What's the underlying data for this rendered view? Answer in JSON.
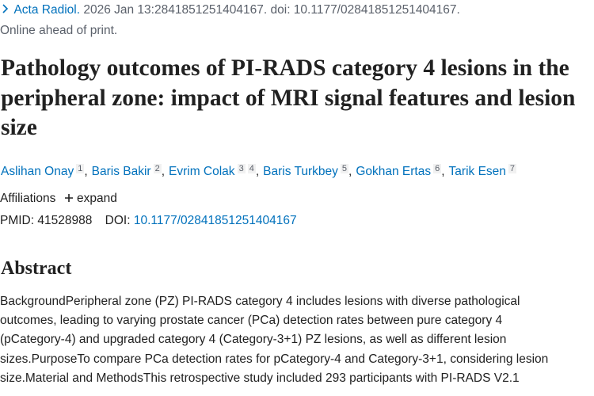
{
  "citation": {
    "journal": "Acta Radiol.",
    "details": " 2026 Jan 13:2841851251404167. doi: 10.1177/02841851251404167."
  },
  "status": "Online ahead of print.",
  "title": "Pathology outcomes of PI-RADS category 4 lesions in the peripheral zone: impact of MRI signal features and lesion size",
  "authors": {
    "separator": ",",
    "list": [
      {
        "name": "Aslihan Onay",
        "affiliations": [
          "1"
        ]
      },
      {
        "name": "Baris Bakir",
        "affiliations": [
          "2"
        ]
      },
      {
        "name": "Evrim Colak",
        "affiliations": [
          "3",
          "4"
        ]
      },
      {
        "name": "Baris Turkbey",
        "affiliations": [
          "5"
        ]
      },
      {
        "name": "Gokhan Ertas",
        "affiliations": [
          "6"
        ]
      },
      {
        "name": "Tarik Esen",
        "affiliations": [
          "7"
        ]
      }
    ]
  },
  "affiliations": {
    "label": "Affiliations",
    "toggle": "expand"
  },
  "identifiers": {
    "pmid_label": "PMID:",
    "pmid": "41528988",
    "doi_label": "DOI:",
    "doi": "10.1177/02841851251404167"
  },
  "abstract": {
    "heading": "Abstract",
    "lines": [
      "BackgroundPeripheral zone (PZ) PI-RADS category 4 includes lesions with diverse pathological",
      "outcomes, leading to varying prostate cancer (PCa) detection rates between pure category 4",
      "(pCategory-4) and upgraded category 4 (Category-3+1) PZ lesions, as well as different lesion",
      "sizes.PurposeTo compare PCa detection rates for pCategory-4 and Category-3+1, considering lesion",
      "size.Material and MethodsThis retrospective study included 293 participants with PI-RADS V2.1"
    ]
  }
}
